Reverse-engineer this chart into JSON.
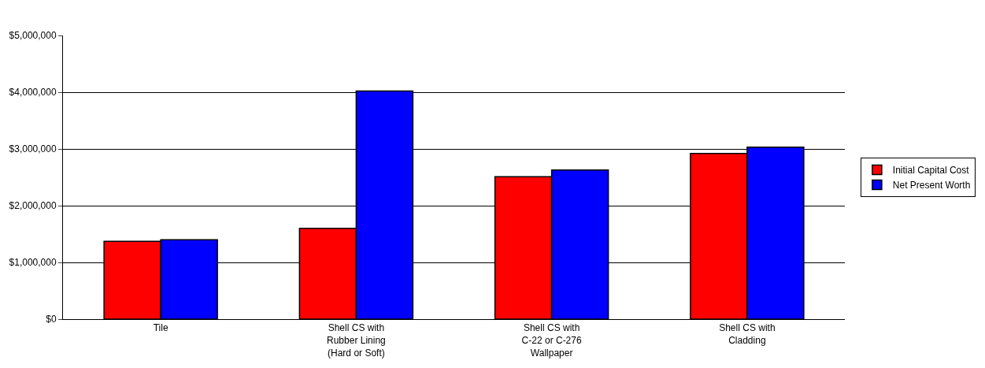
{
  "chart_data": {
    "type": "bar",
    "categories": [
      "Tile",
      "Shell CS with\nRubber Lining\n(Hard or Soft)",
      "Shell CS with\nC-22 or C-276\nWallpaper",
      "Shell CS with\nCladding"
    ],
    "series": [
      {
        "name": "Initial Capital Cost",
        "color": "#ff0000",
        "values": [
          1370000,
          1600000,
          2510000,
          2920000
        ]
      },
      {
        "name": "Net Present Worth",
        "color": "#0000ff",
        "values": [
          1400000,
          4020000,
          2630000,
          3030000
        ]
      }
    ],
    "ylim": [
      0,
      5000000
    ],
    "yticks": [
      {
        "value": 0,
        "label": "$0"
      },
      {
        "value": 1000000,
        "label": "$1,000,000"
      },
      {
        "value": 2000000,
        "label": "$2,000,000"
      },
      {
        "value": 3000000,
        "label": "$3,000,000"
      },
      {
        "value": 4000000,
        "label": "$4,000,000"
      },
      {
        "value": 5000000,
        "label": "$5,000,000"
      }
    ],
    "grid": "y",
    "legend": "right"
  }
}
